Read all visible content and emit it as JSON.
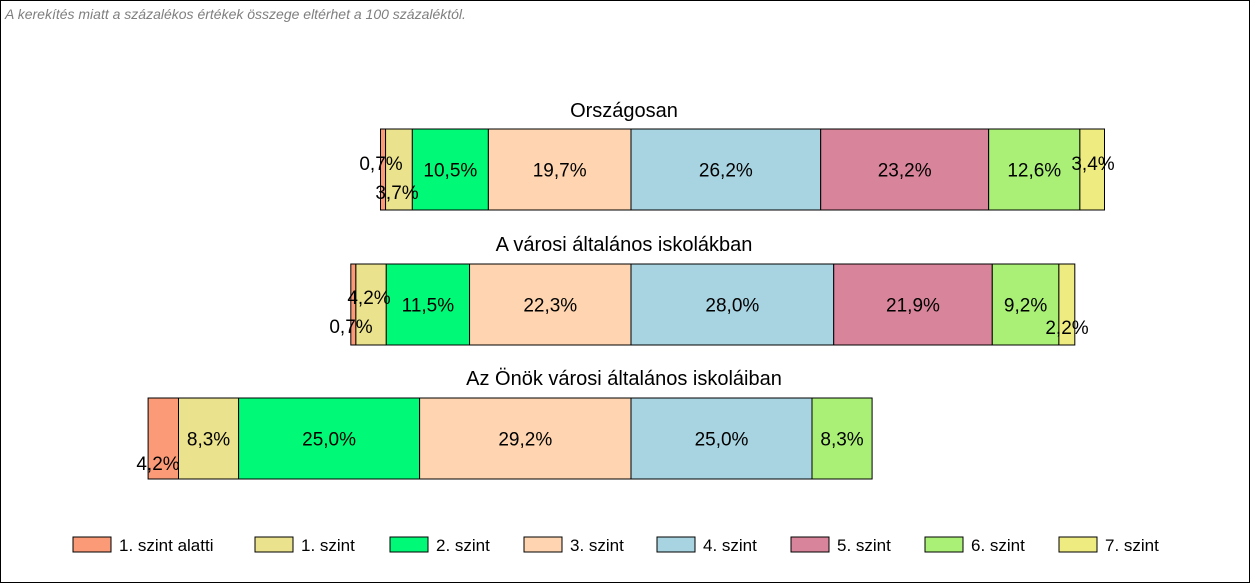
{
  "note": "A kerekítés miatt a  százalékos értékek összege eltérhet a 100 százaléktól.",
  "legend": [
    {
      "label": "1. szint alatti",
      "color": "#fa9a76"
    },
    {
      "label": "1. szint",
      "color": "#eae28c"
    },
    {
      "label": "2. szint",
      "color": "#00f976"
    },
    {
      "label": "3. szint",
      "color": "#fed5b0"
    },
    {
      "label": "4. szint",
      "color": "#a8d4e2"
    },
    {
      "label": "5. szint",
      "color": "#d8849a"
    },
    {
      "label": "6. szint",
      "color": "#aaf076"
    },
    {
      "label": "7. szint",
      "color": "#eeec80"
    }
  ],
  "chart_data": {
    "type": "bar",
    "orientation": "horizontal",
    "stacked": true,
    "alignment": "centered on boundary between 3. szint and 4. szint",
    "series_names": [
      "1. szint alatti",
      "1. szint",
      "2. szint",
      "3. szint",
      "4. szint",
      "5. szint",
      "6. szint",
      "7. szint"
    ],
    "bars": [
      {
        "title": "Országosan",
        "values": [
          0.7,
          3.7,
          10.5,
          19.7,
          26.2,
          23.2,
          12.6,
          3.4
        ],
        "labels": [
          "0,7%",
          "3,7%",
          "10,5%",
          "19,7%",
          "26,2%",
          "23,2%",
          "12,6%",
          "3,4%"
        ]
      },
      {
        "title": "A városi általános iskolákban",
        "values": [
          0.7,
          4.2,
          11.5,
          22.3,
          28.0,
          21.9,
          9.2,
          2.2
        ],
        "labels": [
          "0,7%",
          "4,2%",
          "11,5%",
          "22,3%",
          "28,0%",
          "21,9%",
          "9,2%",
          "2,2%"
        ]
      },
      {
        "title": "Az Önök városi általános iskoláiban",
        "values": [
          4.2,
          8.3,
          25.0,
          29.2,
          25.0,
          0,
          8.3,
          0
        ],
        "labels": [
          "4,2%",
          "8,3%",
          "25,0%",
          "29,2%",
          "25,0%",
          "",
          "8,3%",
          ""
        ]
      }
    ],
    "legend_position": "bottom"
  }
}
